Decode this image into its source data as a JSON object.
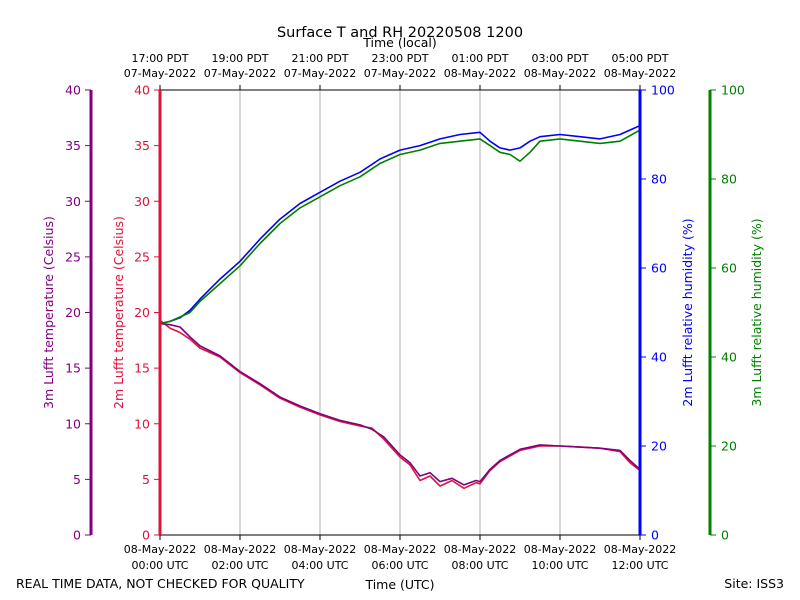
{
  "chart_data": {
    "type": "line",
    "title": "Surface T and RH 20220508 1200",
    "xlabel_bottom": "Time (UTC)",
    "xlabel_top": "Time (local)",
    "footer_left": "REAL TIME DATA, NOT CHECKED FOR QUALITY",
    "footer_right": "Site: ISS3",
    "xlim_hours": [
      0,
      12
    ],
    "bottom_ticks": [
      {
        "h": 0,
        "date": "08-May-2022",
        "time": "00:00 UTC"
      },
      {
        "h": 2,
        "date": "08-May-2022",
        "time": "02:00 UTC"
      },
      {
        "h": 4,
        "date": "08-May-2022",
        "time": "04:00 UTC"
      },
      {
        "h": 6,
        "date": "08-May-2022",
        "time": "06:00 UTC"
      },
      {
        "h": 8,
        "date": "08-May-2022",
        "time": "08:00 UTC"
      },
      {
        "h": 10,
        "date": "08-May-2022",
        "time": "10:00 UTC"
      },
      {
        "h": 12,
        "date": "08-May-2022",
        "time": "12:00 UTC"
      }
    ],
    "top_ticks": [
      {
        "h": 0,
        "time": "17:00 PDT",
        "date": "07-May-2022"
      },
      {
        "h": 2,
        "time": "19:00 PDT",
        "date": "07-May-2022"
      },
      {
        "h": 4,
        "time": "21:00 PDT",
        "date": "07-May-2022"
      },
      {
        "h": 6,
        "time": "23:00 PDT",
        "date": "07-May-2022"
      },
      {
        "h": 8,
        "time": "01:00 PDT",
        "date": "08-May-2022"
      },
      {
        "h": 10,
        "time": "03:00 PDT",
        "date": "08-May-2022"
      },
      {
        "h": 12,
        "time": "05:00 PDT",
        "date": "08-May-2022"
      }
    ],
    "axes": {
      "temp3m": {
        "label": "3m Lufft temperature (Celsius)",
        "color": "#800080",
        "lim": [
          0,
          40
        ],
        "ticks": [
          0,
          5,
          10,
          15,
          20,
          25,
          30,
          35,
          40
        ]
      },
      "temp2m": {
        "label": "2m Lufft temperature (Celsius)",
        "color": "#dc143c",
        "lim": [
          0,
          40
        ],
        "ticks": [
          0,
          5,
          10,
          15,
          20,
          25,
          30,
          35,
          40
        ]
      },
      "rh2m": {
        "label": "2m Lufft relative humidity (%)",
        "color": "#0000ff",
        "lim": [
          0,
          100
        ],
        "ticks": [
          0,
          20,
          40,
          60,
          80,
          100
        ]
      },
      "rh3m": {
        "label": "3m Lufft relative humidity (%)",
        "color": "#008000",
        "lim": [
          0,
          100
        ],
        "ticks": [
          0,
          20,
          40,
          60,
          80,
          100
        ]
      }
    },
    "series": [
      {
        "name": "2m temperature",
        "axis": "temp2m",
        "color": "#dc143c",
        "x": [
          0,
          0.25,
          0.5,
          0.75,
          1,
          1.5,
          2,
          2.5,
          3,
          3.5,
          4,
          4.5,
          5,
          5.3,
          5.6,
          6,
          6.25,
          6.5,
          6.75,
          7,
          7.3,
          7.6,
          7.9,
          8,
          8.25,
          8.5,
          9,
          9.5,
          10,
          10.5,
          11,
          11.5,
          11.75,
          12
        ],
        "y": [
          19.3,
          18.6,
          18.2,
          17.6,
          16.8,
          16.0,
          14.6,
          13.5,
          12.3,
          11.5,
          10.8,
          10.2,
          9.8,
          9.6,
          8.6,
          7.0,
          6.3,
          4.9,
          5.3,
          4.4,
          4.9,
          4.2,
          4.7,
          4.6,
          5.8,
          6.6,
          7.6,
          8.0,
          8.0,
          7.9,
          7.8,
          7.5,
          6.5,
          5.8
        ]
      },
      {
        "name": "3m temperature",
        "axis": "temp3m",
        "color": "#800080",
        "x": [
          0,
          0.25,
          0.5,
          0.75,
          1,
          1.5,
          2,
          2.5,
          3,
          3.5,
          4,
          4.5,
          5,
          5.3,
          5.6,
          6,
          6.25,
          6.5,
          6.75,
          7,
          7.3,
          7.6,
          7.9,
          8,
          8.25,
          8.5,
          9,
          9.5,
          10,
          10.5,
          11,
          11.5,
          11.75,
          12
        ],
        "y": [
          19.0,
          18.9,
          18.7,
          17.8,
          17.0,
          16.1,
          14.7,
          13.6,
          12.4,
          11.6,
          10.9,
          10.3,
          9.9,
          9.5,
          8.8,
          7.2,
          6.5,
          5.3,
          5.6,
          4.8,
          5.1,
          4.5,
          4.9,
          4.8,
          5.9,
          6.7,
          7.7,
          8.1,
          8.0,
          7.9,
          7.8,
          7.6,
          6.7,
          5.9
        ]
      },
      {
        "name": "2m relative humidity",
        "axis": "rh2m",
        "color": "#0000ff",
        "x": [
          0,
          0.25,
          0.5,
          0.75,
          1,
          1.5,
          2,
          2.5,
          3,
          3.5,
          4,
          4.5,
          5,
          5.5,
          6,
          6.5,
          7,
          7.5,
          8,
          8.25,
          8.5,
          8.75,
          9,
          9.25,
          9.5,
          10,
          10.5,
          11,
          11.5,
          12
        ],
        "y": [
          47.5,
          48.0,
          48.8,
          50.5,
          53.0,
          57.5,
          61.5,
          66.5,
          71.0,
          74.5,
          77.0,
          79.5,
          81.5,
          84.5,
          86.5,
          87.5,
          89.0,
          90.0,
          90.5,
          88.5,
          87.0,
          86.5,
          87.0,
          88.5,
          89.5,
          90.0,
          89.5,
          89.0,
          90.0,
          92.0
        ]
      },
      {
        "name": "3m relative humidity",
        "axis": "rh3m",
        "color": "#008000",
        "x": [
          0,
          0.25,
          0.5,
          0.75,
          1,
          1.5,
          2,
          2.5,
          3,
          3.5,
          4,
          4.5,
          5,
          5.5,
          6,
          6.5,
          7,
          7.5,
          8,
          8.25,
          8.5,
          8.75,
          9,
          9.25,
          9.5,
          10,
          10.5,
          11,
          11.5,
          12
        ],
        "y": [
          47.5,
          48.0,
          49.0,
          50.0,
          52.5,
          56.5,
          60.5,
          65.5,
          70.0,
          73.5,
          76.0,
          78.5,
          80.5,
          83.5,
          85.5,
          86.5,
          88.0,
          88.5,
          89.0,
          87.5,
          86.0,
          85.5,
          84.0,
          86.0,
          88.5,
          89.0,
          88.5,
          88.0,
          88.5,
          91.0
        ]
      }
    ]
  }
}
